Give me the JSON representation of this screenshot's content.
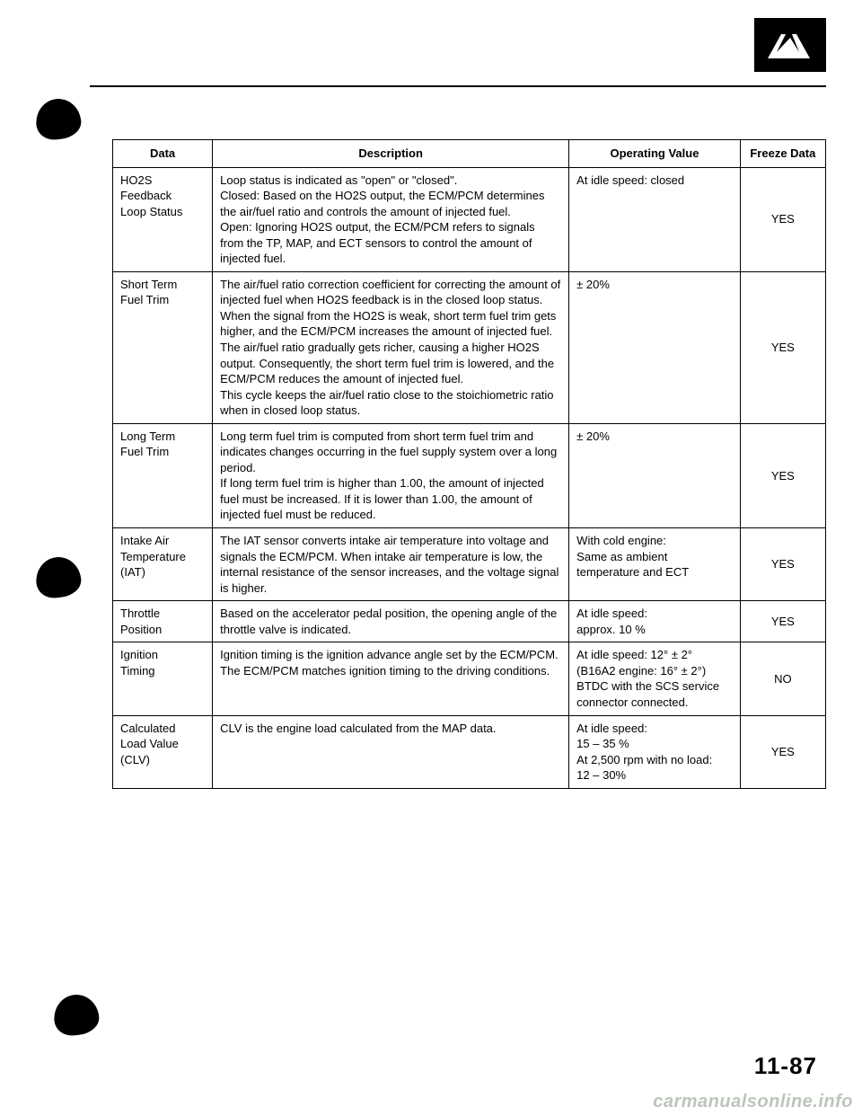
{
  "page_number": "11-87",
  "watermark": "carmanualsonline.info",
  "table": {
    "headers": [
      "Data",
      "Description",
      "Operating Value",
      "Freeze Data"
    ],
    "rows": [
      {
        "data": "HO2S\nFeedback\nLoop Status",
        "description": "Loop status is indicated as \"open\" or \"closed\".\nClosed: Based on the HO2S output, the ECM/PCM determines the air/fuel ratio and controls the amount of injected fuel.\nOpen: Ignoring HO2S output, the ECM/PCM refers to signals from the TP, MAP, and ECT sensors to control the amount of injected fuel.",
        "operating": "At idle speed: closed",
        "freeze": "YES"
      },
      {
        "data": "Short Term\nFuel Trim",
        "description": "The air/fuel ratio correction coefficient for correcting the amount of injected fuel when HO2S feedback is in the closed loop status. When the signal from the HO2S is weak, short term fuel trim gets higher, and the ECM/PCM increases the amount of injected fuel. The air/fuel ratio gradually gets richer, causing a higher HO2S output. Consequently, the short term fuel trim is lowered, and the ECM/PCM reduces the amount of injected fuel.\nThis cycle keeps the air/fuel ratio close to the stoichiometric ratio when in closed loop status.",
        "operating": "± 20%",
        "freeze": "YES"
      },
      {
        "data": "Long Term\nFuel Trim",
        "description": "Long term fuel trim is computed from short term fuel trim and indicates changes occurring in the fuel supply system over a long period.\nIf long term fuel trim is higher than 1.00, the amount of injected fuel must be increased. If it is lower than 1.00, the amount of injected fuel must be reduced.",
        "operating": "± 20%",
        "freeze": "YES"
      },
      {
        "data": "Intake Air\nTemperature\n(IAT)",
        "description": "The IAT sensor converts intake air temperature into voltage and signals the ECM/PCM. When intake air temperature is low, the internal resistance of the sensor increases, and the voltage signal is higher.",
        "operating": "With cold engine:\nSame as ambient temperature and ECT",
        "freeze": "YES"
      },
      {
        "data": "Throttle\nPosition",
        "description": "Based on the accelerator pedal position, the opening angle of the throttle valve is indicated.",
        "operating": "At idle speed:\napprox. 10 %",
        "freeze": "YES"
      },
      {
        "data": "Ignition\nTiming",
        "description": "Ignition timing is the ignition advance angle set by the ECM/PCM. The ECM/PCM matches ignition timing to the driving conditions.",
        "operating": "At idle speed: 12° ± 2°\n(B16A2 engine: 16° ± 2°)\nBTDC with the SCS service connector connected.",
        "freeze": "NO"
      },
      {
        "data": "Calculated\nLoad Value\n(CLV)",
        "description": "CLV is the engine load calculated from the MAP data.",
        "operating": "At idle speed:\n15 – 35 %\nAt 2,500 rpm with no load:\n12 – 30%",
        "freeze": "YES"
      }
    ]
  }
}
